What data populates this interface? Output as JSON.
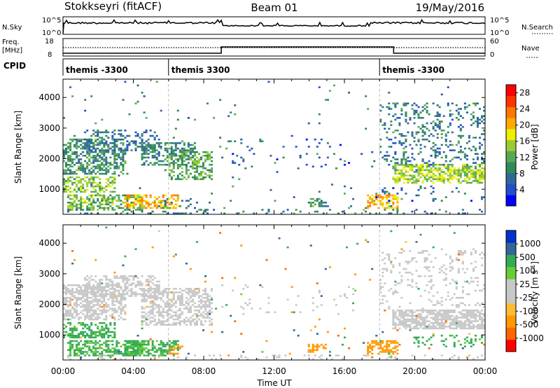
{
  "header": {
    "station": "Stokkseyri (fitACF)",
    "beam": "Beam 01",
    "date": "19/May/2016"
  },
  "strip_labels": {
    "nsky": "N.Sky",
    "nsearch": "N.Search",
    "freq": "Freq.",
    "freq_unit": "[MHz]",
    "nave": "Nave",
    "cpid": "CPID",
    "nsky_top": "10^5",
    "nsky_bot": "10^0",
    "nsearch_top": "10^5",
    "nsearch_bot": "10^0",
    "freq_top": "18",
    "freq_bot": "8",
    "nave_top": "60",
    "nave_bot": "0"
  },
  "cpid_segments": [
    {
      "start": 0.0,
      "end": 6.0,
      "label": "themis -3300"
    },
    {
      "start": 6.0,
      "end": 18.0,
      "label": "themis 3300"
    },
    {
      "start": 18.0,
      "end": 24.0,
      "label": "themis -3300"
    }
  ],
  "colors": {
    "power": [
      "#0000ff",
      "#2050c8",
      "#336699",
      "#2e8b57",
      "#55aa55",
      "#99cc33",
      "#eeee00",
      "#ffaa00",
      "#ff7700",
      "#ff3300",
      "#ff0000"
    ],
    "velocity": [
      "#ff0000",
      "#ff6600",
      "#ff9900",
      "#ffbb33",
      "#c8c8c8",
      "#c8c8c8",
      "#66cc33",
      "#33aa55",
      "#336699",
      "#0033cc"
    ]
  },
  "chart_data": [
    {
      "type": "heatmap",
      "title": "",
      "xlabel": "",
      "ylabel": "Slant Range [km]",
      "xlim": [
        0,
        24
      ],
      "ylim": [
        180,
        4600
      ],
      "x_ticks": [
        "00:00",
        "04:00",
        "08:00",
        "12:00",
        "16:00",
        "20:00",
        "00:00"
      ],
      "y_ticks": [
        1000,
        2000,
        3000,
        4000
      ],
      "colorbar": {
        "label": "Power [dB]",
        "ticks": [
          "4",
          "8",
          "12",
          "16",
          "20",
          "24",
          "28"
        ],
        "range": [
          0,
          30
        ]
      },
      "regions": [
        {
          "t0": 0.0,
          "t1": 3.5,
          "r0": 1500,
          "r1": 2600,
          "density": 0.55,
          "val": 10
        },
        {
          "t0": 1.2,
          "t1": 5.5,
          "r0": 2300,
          "r1": 2900,
          "density": 0.3,
          "val": 7
        },
        {
          "t0": 4.5,
          "t1": 7.5,
          "r0": 1800,
          "r1": 2500,
          "density": 0.45,
          "val": 9
        },
        {
          "t0": 0.0,
          "t1": 3.0,
          "r0": 900,
          "r1": 1400,
          "density": 0.55,
          "val": 14
        },
        {
          "t0": 0.3,
          "t1": 4.5,
          "r0": 300,
          "r1": 800,
          "density": 0.6,
          "val": 13
        },
        {
          "t0": 3.5,
          "t1": 6.5,
          "r0": 400,
          "r1": 800,
          "density": 0.55,
          "val": 20
        },
        {
          "t0": 6.0,
          "t1": 8.5,
          "r0": 1300,
          "r1": 2200,
          "density": 0.45,
          "val": 12
        },
        {
          "t0": 5.5,
          "t1": 9.0,
          "r0": 200,
          "r1": 700,
          "density": 0.12,
          "val": 8
        },
        {
          "t0": 9.0,
          "t1": 16.5,
          "r0": 1700,
          "r1": 2600,
          "density": 0.04,
          "val": 6
        },
        {
          "t0": 14.0,
          "t1": 15.0,
          "r0": 450,
          "r1": 700,
          "density": 0.5,
          "val": 10
        },
        {
          "t0": 17.3,
          "t1": 19.0,
          "r0": 400,
          "r1": 800,
          "density": 0.5,
          "val": 20
        },
        {
          "t0": 18.8,
          "t1": 24.0,
          "r0": 1200,
          "r1": 1800,
          "density": 0.65,
          "val": 15
        },
        {
          "t0": 18.0,
          "t1": 24.0,
          "r0": 1800,
          "r1": 3800,
          "density": 0.2,
          "val": 8
        },
        {
          "t0": 17.5,
          "t1": 24.0,
          "r0": 600,
          "r1": 1100,
          "density": 0.06,
          "val": 6
        },
        {
          "t0": 0.0,
          "t1": 24.0,
          "r0": 180,
          "r1": 320,
          "density": 0.12,
          "val": 8
        }
      ]
    },
    {
      "type": "heatmap",
      "title": "",
      "xlabel": "Time UT",
      "ylabel": "Slant Range [km]",
      "xlim": [
        0,
        24
      ],
      "ylim": [
        180,
        4600
      ],
      "x_ticks": [
        "00:00",
        "04:00",
        "08:00",
        "12:00",
        "16:00",
        "20:00",
        "00:00"
      ],
      "y_ticks": [
        1000,
        2000,
        3000,
        4000
      ],
      "colorbar": {
        "label": "Velocity [m s^-1]",
        "ticks": [
          "1000",
          "500",
          "100",
          "25",
          "-25",
          "-100",
          "-500",
          "-1000"
        ],
        "range": [
          -1000,
          1000
        ]
      },
      "regions": [
        {
          "t0": 0.0,
          "t1": 3.5,
          "r0": 1500,
          "r1": 2600,
          "density": 0.6,
          "val": 0
        },
        {
          "t0": 1.2,
          "t1": 5.5,
          "r0": 2300,
          "r1": 2900,
          "density": 0.45,
          "val": 0
        },
        {
          "t0": 4.5,
          "t1": 8.5,
          "r0": 1300,
          "r1": 2500,
          "density": 0.55,
          "val": 0
        },
        {
          "t0": 0.0,
          "t1": 3.0,
          "r0": 900,
          "r1": 1400,
          "density": 0.55,
          "val": 150
        },
        {
          "t0": 0.3,
          "t1": 4.5,
          "r0": 300,
          "r1": 800,
          "density": 0.6,
          "val": 120
        },
        {
          "t0": 3.5,
          "t1": 6.5,
          "r0": 350,
          "r1": 800,
          "density": 0.55,
          "val": 130
        },
        {
          "t0": 6.0,
          "t1": 6.8,
          "r0": 400,
          "r1": 700,
          "density": 0.5,
          "val": -150
        },
        {
          "t0": 14.0,
          "t1": 15.0,
          "r0": 450,
          "r1": 700,
          "density": 0.5,
          "val": -300
        },
        {
          "t0": 17.3,
          "t1": 19.0,
          "r0": 400,
          "r1": 800,
          "density": 0.55,
          "val": -350
        },
        {
          "t0": 18.8,
          "t1": 24.0,
          "r0": 1200,
          "r1": 1800,
          "density": 0.7,
          "val": 0
        },
        {
          "t0": 18.0,
          "t1": 24.0,
          "r0": 1800,
          "r1": 3800,
          "density": 0.15,
          "val": 0
        },
        {
          "t0": 20.0,
          "t1": 24.0,
          "r0": 600,
          "r1": 1000,
          "density": 0.15,
          "val": 150
        },
        {
          "t0": 9.0,
          "t1": 16.5,
          "r0": 1700,
          "r1": 2600,
          "density": 0.04,
          "val": 0
        },
        {
          "t0": 0.0,
          "t1": 24.0,
          "r0": 180,
          "r1": 320,
          "density": 0.12,
          "val": 0
        }
      ]
    }
  ]
}
